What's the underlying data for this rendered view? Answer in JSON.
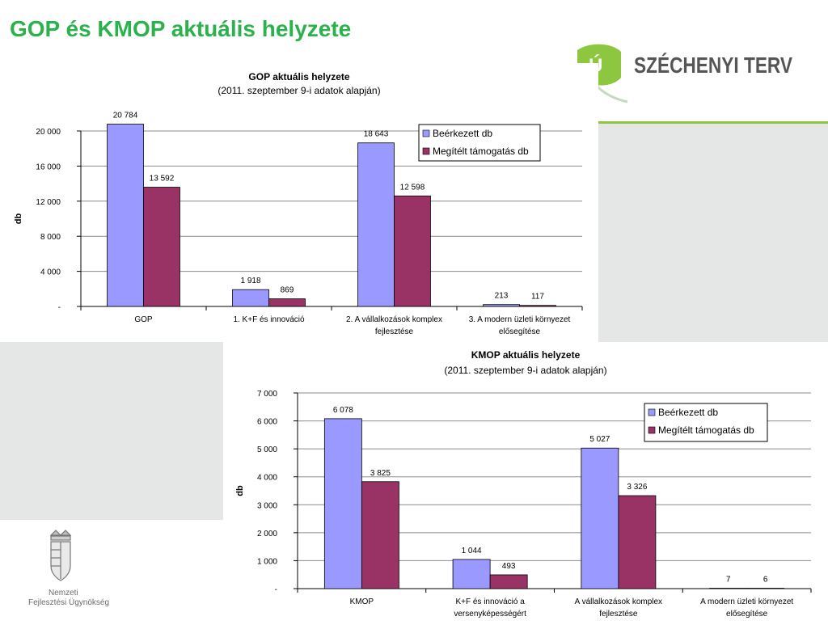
{
  "page": {
    "title": "GOP és KMOP aktuális helyzete",
    "logo_text": "SZÉCHENYI TERV",
    "logo_badge": "Ú",
    "org_line1": "Nemzeti",
    "org_line2": "Fejlesztési Ügynökség"
  },
  "colors": {
    "title": "#2bb24c",
    "series1": "#9999ff",
    "series2": "#993366",
    "accent_line": "#8dc63f"
  },
  "chart_data": [
    {
      "type": "bar",
      "title": "GOP aktuális helyzete",
      "subtitle": "(2011. szeptember 9-i adatok alapján)",
      "ylabel": "db",
      "xlabel": "",
      "ylim": [
        0,
        20000
      ],
      "yticks": [
        0,
        4000,
        8000,
        12000,
        16000,
        20000
      ],
      "ytick_labels": [
        "-",
        "4 000",
        "8 000",
        "12 000",
        "16 000",
        "20 000"
      ],
      "categories": [
        [
          "GOP"
        ],
        [
          "1. K+F és innováció"
        ],
        [
          "2. A vállalkozások komplex",
          "fejlesztése"
        ],
        [
          "3. A modern üzleti környezet",
          "elősegítése"
        ]
      ],
      "series": [
        {
          "name": "Beérkezett db",
          "values": [
            20784,
            1918,
            18643,
            213
          ],
          "labels": [
            "20 784",
            "1 918",
            "18 643",
            "213"
          ]
        },
        {
          "name": "Megítélt támogatás db",
          "values": [
            13592,
            869,
            12598,
            117
          ],
          "labels": [
            "13 592",
            "869",
            "12 598",
            "117"
          ]
        }
      ],
      "grid": true,
      "legend": "top-right"
    },
    {
      "type": "bar",
      "title": "KMOP aktuális helyzete",
      "subtitle": "(2011. szeptember 9-i adatok alapján)",
      "ylabel": "db",
      "xlabel": "",
      "ylim": [
        0,
        7000
      ],
      "yticks": [
        0,
        1000,
        2000,
        3000,
        4000,
        5000,
        6000,
        7000
      ],
      "ytick_labels": [
        "-",
        "1 000",
        "2 000",
        "3 000",
        "4 000",
        "5 000",
        "6 000",
        "7 000"
      ],
      "categories": [
        [
          "KMOP"
        ],
        [
          "K+F és innováció a",
          "versenyképességért"
        ],
        [
          "A vállalkozások komplex",
          "fejlesztése"
        ],
        [
          "A modern üzleti környezet",
          "elősegítése"
        ]
      ],
      "series": [
        {
          "name": "Beérkezett db",
          "values": [
            6078,
            1044,
            5027,
            7
          ],
          "labels": [
            "6 078",
            "1 044",
            "5 027",
            "7"
          ]
        },
        {
          "name": "Megítélt támogatás db",
          "values": [
            3825,
            493,
            3326,
            6
          ],
          "labels": [
            "3 825",
            "493",
            "3 326",
            "6"
          ]
        }
      ],
      "grid": true,
      "legend": "top-right"
    }
  ]
}
